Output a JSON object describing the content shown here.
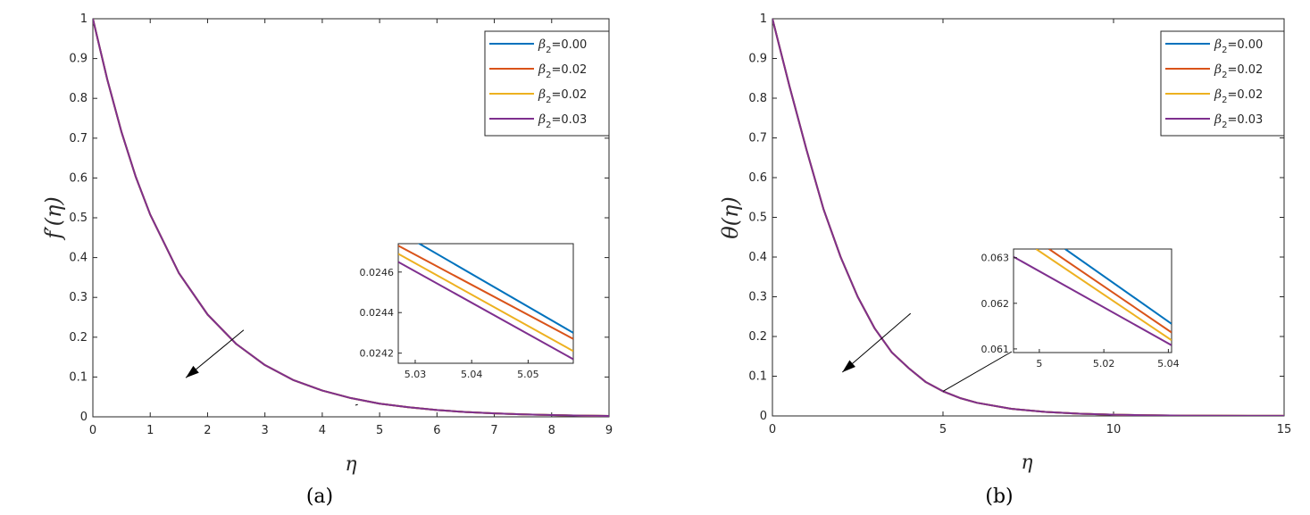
{
  "colors": [
    "#0072BD",
    "#D95319",
    "#EDB120",
    "#7E2F8E"
  ],
  "chart_data": [
    {
      "type": "line",
      "panel_caption": "(a)",
      "ylabel_html": "f′(η)",
      "xlabel": "η",
      "xlim": [
        0,
        9
      ],
      "ylim": [
        0,
        1
      ],
      "xticks": [
        "0",
        "1",
        "2",
        "3",
        "4",
        "5",
        "6",
        "7",
        "8",
        "9"
      ],
      "yticks": [
        "0",
        "0.1",
        "0.2",
        "0.3",
        "0.4",
        "0.5",
        "0.6",
        "0.7",
        "0.8",
        "0.9",
        "1"
      ],
      "legend": {
        "placement": "top-right",
        "entries": [
          {
            "symbol": "β",
            "sub": "2",
            "text": "=0.00"
          },
          {
            "symbol": "β",
            "sub": "2",
            "text": "=0.02"
          },
          {
            "symbol": "β",
            "sub": "2",
            "text": "=0.02"
          },
          {
            "symbol": "β",
            "sub": "2",
            "text": "=0.03"
          }
        ]
      },
      "series_x": [
        0,
        0.25,
        0.5,
        0.75,
        1,
        1.5,
        2,
        2.5,
        3,
        3.5,
        4,
        4.5,
        5,
        5.5,
        6,
        6.5,
        7,
        7.5,
        8,
        8.5,
        9
      ],
      "series_y": [
        1,
        0.848,
        0.715,
        0.602,
        0.508,
        0.361,
        0.257,
        0.183,
        0.13,
        0.092,
        0.066,
        0.047,
        0.033,
        0.024,
        0.017,
        0.012,
        0.0086,
        0.0061,
        0.0044,
        0.0031,
        0.0022
      ],
      "arrow": {
        "from": [
          2.63,
          0.218
        ],
        "to": [
          1.62,
          0.098
        ]
      },
      "inset": {
        "xlim": [
          5.027,
          5.058
        ],
        "ylim": [
          0.02415,
          0.02474
        ],
        "xticks": [
          5.03,
          5.04,
          5.05
        ],
        "xtick_labels": [
          "5.03",
          "5.04",
          "5.05"
        ],
        "yticks": [
          0.0242,
          0.0244,
          0.0246
        ],
        "ytick_labels": [
          "0.0242",
          "0.0244",
          "0.0246"
        ],
        "lines": [
          [
            [
              5.027,
              0.0248
            ],
            [
              5.058,
              0.0243
            ]
          ],
          [
            [
              5.027,
              0.02473
            ],
            [
              5.058,
              0.02427
            ]
          ],
          [
            [
              5.027,
              0.02469
            ],
            [
              5.058,
              0.02421
            ]
          ],
          [
            [
              5.027,
              0.02465
            ],
            [
              5.058,
              0.02417
            ]
          ]
        ],
        "pointer_from": [
          4.62,
          0.031
        ]
      }
    },
    {
      "type": "line",
      "panel_caption": "(b)",
      "ylabel_html": "θ(η)",
      "xlabel": "η",
      "xlim": [
        0,
        15
      ],
      "ylim": [
        0,
        1
      ],
      "xticks": [
        "0",
        "5",
        "10",
        "15"
      ],
      "yticks": [
        "0",
        "0.1",
        "0.2",
        "0.3",
        "0.4",
        "0.5",
        "0.6",
        "0.7",
        "0.8",
        "0.9",
        "1"
      ],
      "legend": {
        "placement": "top-right",
        "entries": [
          {
            "symbol": "β",
            "sub": "2",
            "text": "=0.00"
          },
          {
            "symbol": "β",
            "sub": "2",
            "text": "=0.02"
          },
          {
            "symbol": "β",
            "sub": "2",
            "text": "=0.02"
          },
          {
            "symbol": "β",
            "sub": "2",
            "text": "=0.03"
          }
        ]
      },
      "series_x": [
        0,
        0.5,
        1,
        1.5,
        2,
        2.5,
        3,
        3.5,
        4,
        4.5,
        5,
        5.5,
        6,
        7,
        8,
        9,
        10,
        11,
        12,
        13,
        14,
        15
      ],
      "series_y": [
        1,
        0.83,
        0.67,
        0.52,
        0.4,
        0.3,
        0.22,
        0.16,
        0.12,
        0.085,
        0.062,
        0.045,
        0.033,
        0.018,
        0.01,
        0.0055,
        0.003,
        0.0017,
        0.0009,
        0.0005,
        0.0003,
        0.0002
      ],
      "arrow": {
        "from": [
          4.05,
          0.258
        ],
        "to": [
          2.05,
          0.11
        ]
      },
      "inset": {
        "xlim": [
          4.992,
          5.041
        ],
        "ylim": [
          0.06092,
          0.06319
        ],
        "xticks": [
          5.0,
          5.02,
          5.04
        ],
        "xtick_labels": [
          "5",
          "5.02",
          "5.04"
        ],
        "yticks": [
          0.061,
          0.062,
          0.063
        ],
        "ytick_labels": [
          "0.061",
          "0.062",
          "0.063"
        ],
        "lines": [
          [
            [
              5.008,
              0.06319
            ],
            [
              5.041,
              0.06155
            ]
          ],
          [
            [
              5.003,
              0.06319
            ],
            [
              5.041,
              0.06136
            ]
          ],
          [
            [
              4.999,
              0.06319
            ],
            [
              5.041,
              0.06119
            ]
          ],
          [
            [
              4.992,
              0.06302
            ],
            [
              5.041,
              0.06108
            ]
          ]
        ],
        "pointer_from": [
          5.0,
          0.062
        ]
      }
    }
  ]
}
